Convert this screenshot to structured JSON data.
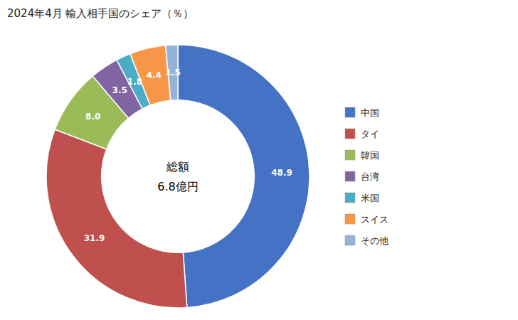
{
  "chart_data": {
    "type": "donut",
    "title": "2024年4月 輸入相手国のシェア（％）",
    "annotations": [
      "総額",
      "6.8億円"
    ],
    "categories": [
      "中国",
      "タイ",
      "韓国",
      "台湾",
      "米国",
      "スイス",
      "その他"
    ],
    "values": [
      48.9,
      31.9,
      8.0,
      3.5,
      1.8,
      4.4,
      1.5
    ],
    "value_labels": [
      "48.9",
      "31.9",
      "8.0",
      "3.5",
      "1.8",
      "4.4",
      "1.5"
    ],
    "colors": [
      "#4472C4",
      "#C0504D",
      "#9BBB59",
      "#8064A2",
      "#4BACC6",
      "#F79646",
      "#95B3D7"
    ],
    "data_labels": true,
    "legend": "right"
  }
}
